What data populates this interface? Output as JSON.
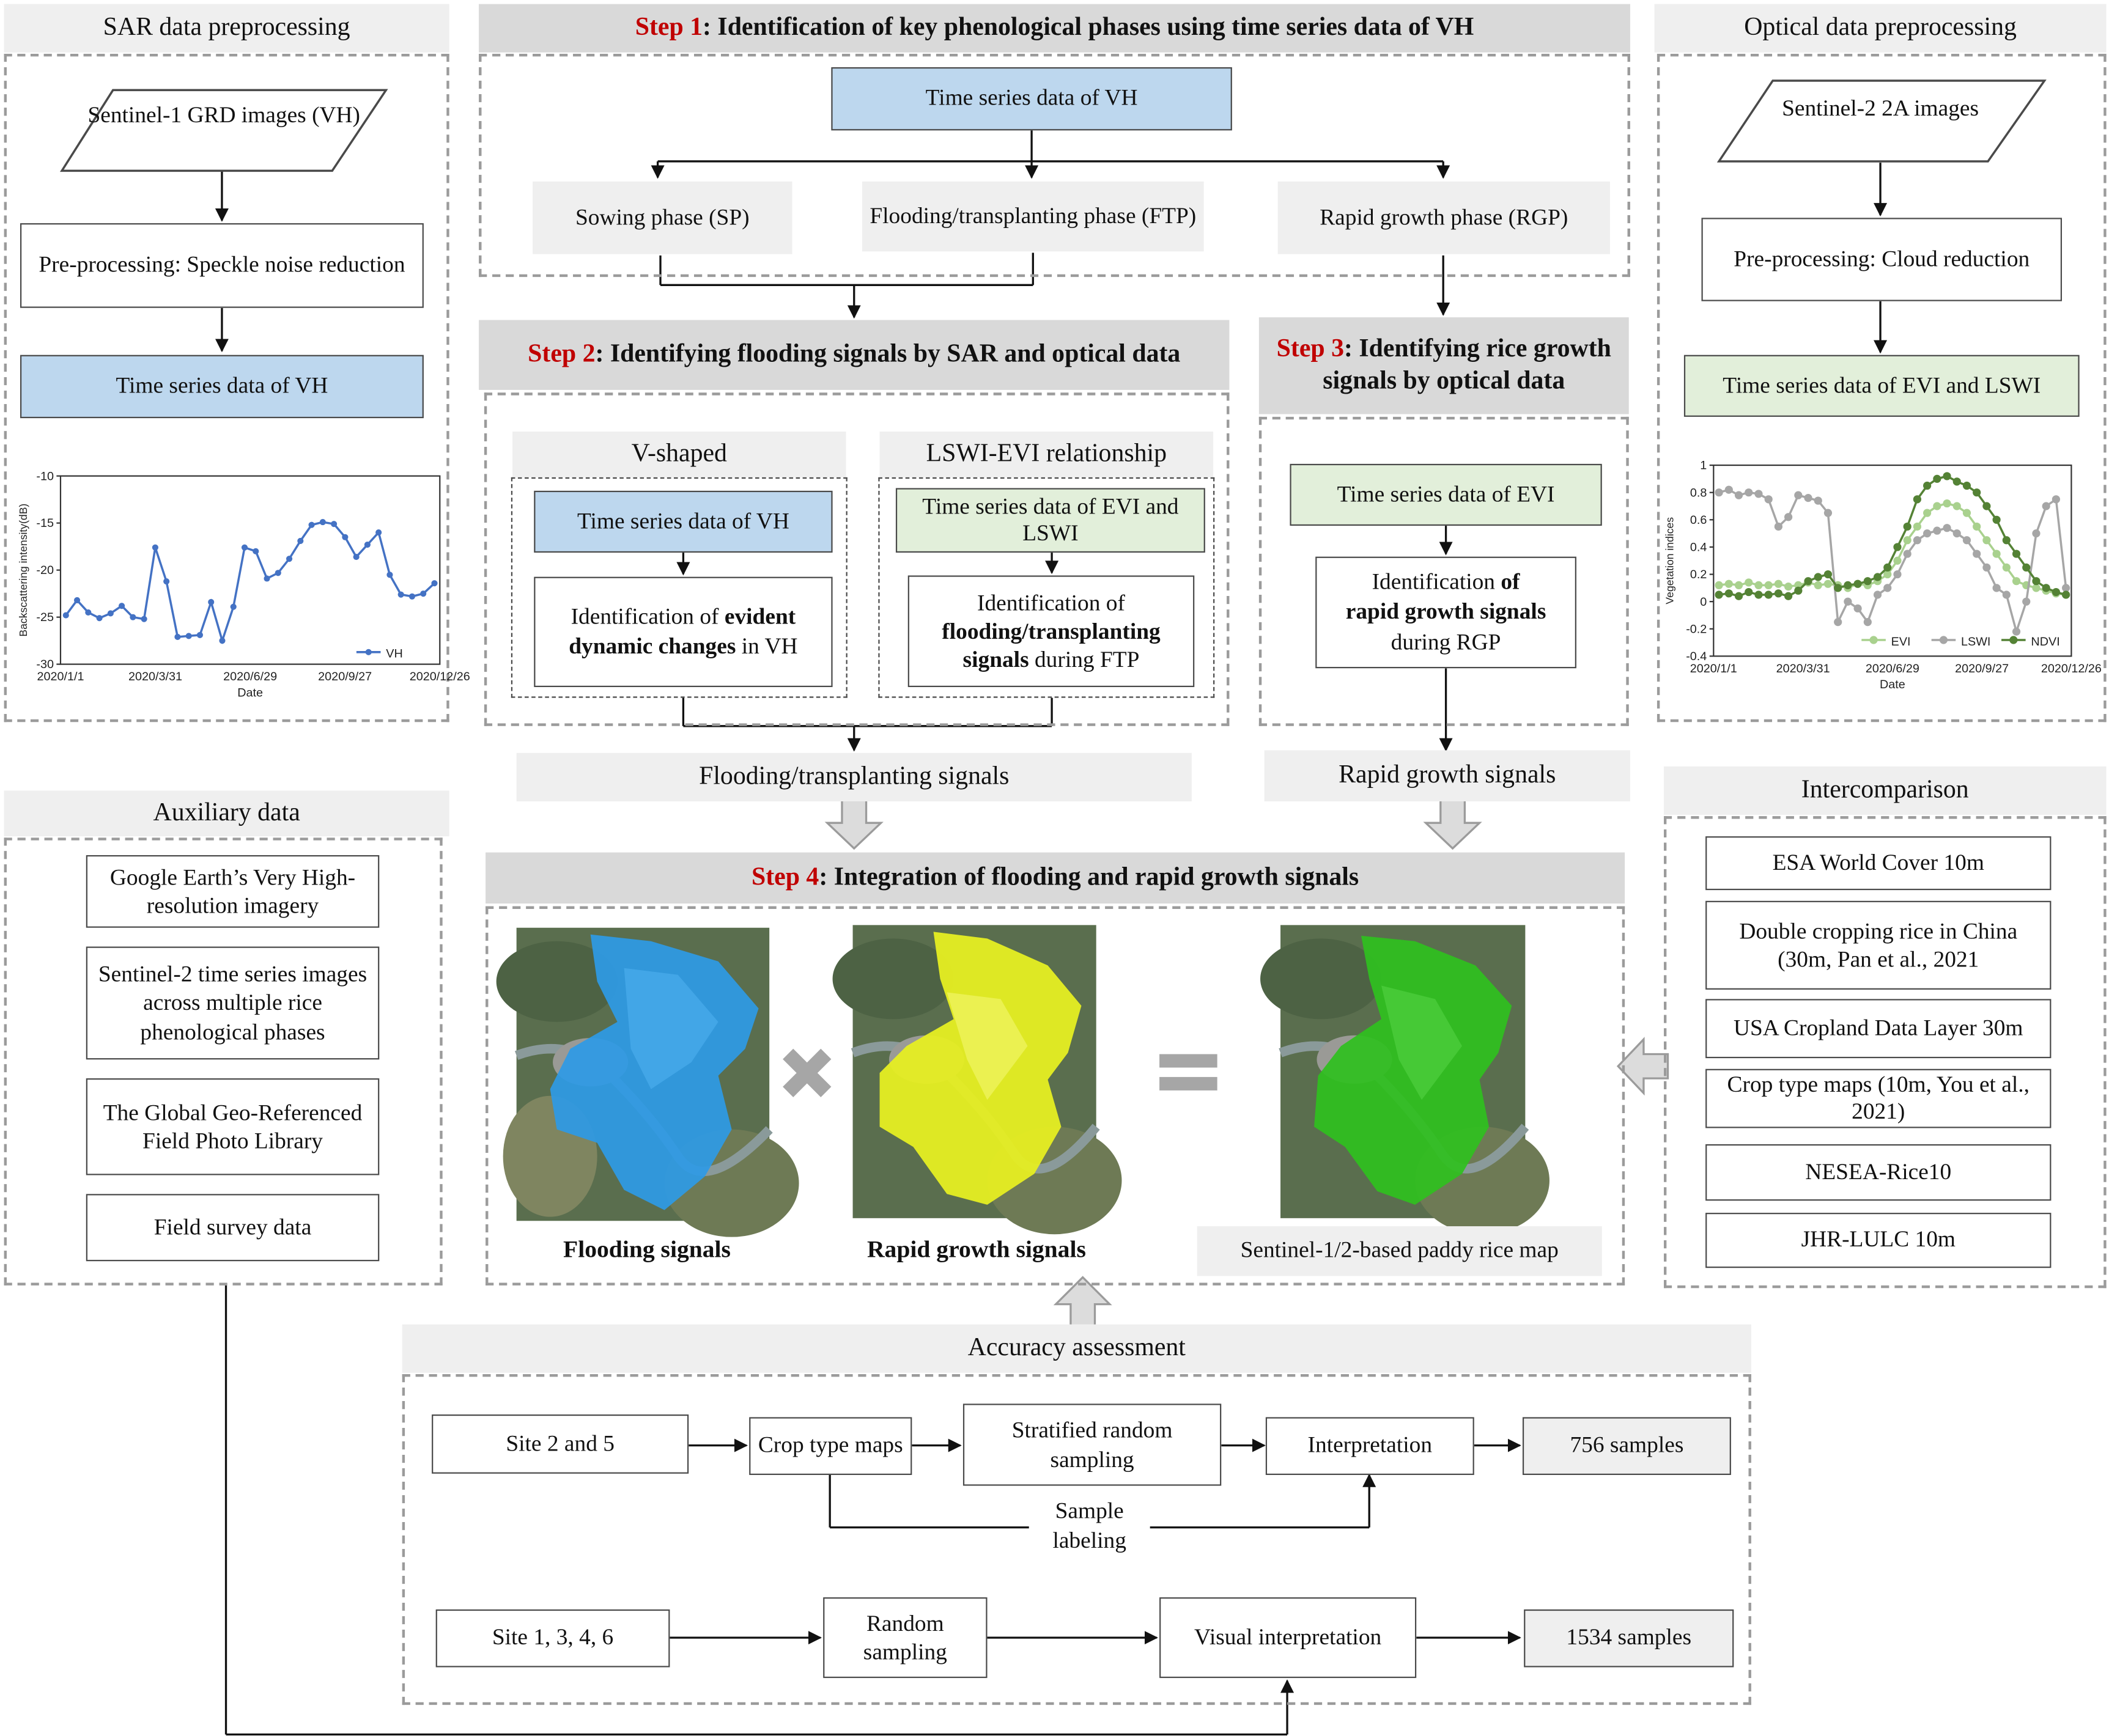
{
  "sar": {
    "title": "SAR data preprocessing",
    "input": "Sentinel-1 GRD images (VH)",
    "preprocess": "Pre-processing: Speckle noise reduction",
    "output": "Time series data of VH",
    "chart_ylabel": "Backscattering intensity(dB)",
    "chart_xlabel": "Date",
    "legend": "VH"
  },
  "optical": {
    "title": "Optical data preprocessing",
    "input": "Sentinel-2 2A images",
    "preprocess": "Pre-processing: Cloud reduction",
    "output": "Time series data of EVI and LSWI",
    "chart_ylabel": "Vegetation indices",
    "chart_xlabel": "Date",
    "legend": [
      "EVI",
      "LSWI",
      "NDVI"
    ]
  },
  "step1": {
    "num": "Step 1",
    "title": ": Identification of key phenological phases using time series data of VH",
    "source": "Time series data of VH",
    "phases": [
      "Sowing phase (SP)",
      "Flooding/transplanting phase (FTP)",
      "Rapid growth phase (RGP)"
    ]
  },
  "step2": {
    "num": "Step 2",
    "title": ": Identifying flooding signals by SAR and optical data",
    "left_header": "V-shaped",
    "left_data": "Time series data of VH",
    "left_ident_pre": "Identification of ",
    "left_ident_bold": "evident dynamic changes",
    "left_ident_post": " in VH",
    "right_header": "LSWI-EVI relationship",
    "right_data": "Time series data of EVI and LSWI",
    "right_ident_pre": "Identification of ",
    "right_ident_bold": "flooding/transplanting signals",
    "right_ident_post": " during FTP",
    "output": "Flooding/transplanting signals"
  },
  "step3": {
    "num": "Step 3",
    "title": ": Identifying rice growth signals by optical data",
    "data": "Time series data of EVI",
    "ident_pre": "Identification ",
    "ident_bold1": "of",
    "ident_bold2": "rapid growth signals",
    "ident_post": "during RGP",
    "output": "Rapid growth signals"
  },
  "step4": {
    "num": "Step 4",
    "title": ": Integration of flooding and rapid growth signals",
    "map1": "Flooding signals",
    "map2": "Rapid growth signals",
    "map3": "Sentinel-1/2-based paddy rice map"
  },
  "auxiliary": {
    "title": "Auxiliary data",
    "items": [
      "Google Earth’s Very High-resolution imagery",
      "Sentinel-2 time series images across multiple rice phenological phases",
      "The Global Geo-Referenced Field Photo Library",
      "Field survey data"
    ]
  },
  "intercomparison": {
    "title": "Intercomparison",
    "items": [
      "ESA World Cover 10m",
      "Double cropping rice in China (30m, Pan et al., 2021",
      "USA Cropland Data Layer 30m",
      "Crop type maps (10m, You et al., 2021)",
      "NESEA-Rice10",
      "JHR-LULC 10m"
    ]
  },
  "accuracy": {
    "title": "Accuracy assessment",
    "row1": [
      "Site 2 and 5",
      "Crop type maps",
      "Stratified random sampling",
      "Interpretation",
      "756 samples"
    ],
    "sample_labeling": "Sample labeling",
    "row2": [
      "Site 1, 3, 4, 6",
      "Random sampling",
      "Visual interpretation",
      "1534 samples"
    ]
  },
  "chart_data": [
    {
      "type": "line",
      "series": [
        {
          "name": "VH",
          "values": [
            -24.8,
            -23.2,
            -24.5,
            -25.1,
            -24.6,
            -23.8,
            -25.0,
            -25.2,
            -17.6,
            -21.2,
            -27.1,
            -27.0,
            -26.9,
            -23.4,
            -27.5,
            -23.9,
            -17.6,
            -18.0,
            -20.9,
            -20.3,
            -18.8,
            -16.9,
            -15.2,
            -14.9,
            -15.1,
            -16.5,
            -18.6,
            -17.3,
            -16.0,
            -20.5,
            -22.6,
            -22.8,
            -22.5,
            -21.4
          ]
        }
      ],
      "x_ticks": [
        "2020/1/1",
        "2020/3/31",
        "2020/6/29",
        "2020/9/27",
        "2020/12/26"
      ],
      "xlabel": "Date",
      "ylabel": "Backscattering intensity(dB)",
      "ylim": [
        -30,
        -10
      ],
      "y_ticks": [
        -10,
        -15,
        -20,
        -25,
        -30
      ],
      "grid": false,
      "legend": "bottom-right"
    },
    {
      "type": "line",
      "series": [
        {
          "name": "EVI",
          "values": [
            0.12,
            0.13,
            0.12,
            0.14,
            0.12,
            0.12,
            0.13,
            0.11,
            0.12,
            0.14,
            0.12,
            0.13,
            0.12,
            0.1,
            0.13,
            0.12,
            0.15,
            0.2,
            0.3,
            0.45,
            0.55,
            0.65,
            0.7,
            0.72,
            0.7,
            0.65,
            0.55,
            0.45,
            0.35,
            0.25,
            0.15,
            0.12,
            0.1,
            0.08,
            0.06,
            0.05
          ]
        },
        {
          "name": "LSWI",
          "values": [
            0.8,
            0.82,
            0.78,
            0.8,
            0.79,
            0.75,
            0.55,
            0.62,
            0.78,
            0.76,
            0.74,
            0.65,
            -0.15,
            0.0,
            -0.05,
            -0.15,
            0.05,
            0.1,
            0.2,
            0.35,
            0.45,
            0.5,
            0.52,
            0.54,
            0.5,
            0.45,
            0.35,
            0.25,
            0.1,
            0.05,
            -0.22,
            0.0,
            0.5,
            0.7,
            0.75,
            0.1
          ]
        },
        {
          "name": "NDVI",
          "values": [
            0.05,
            0.06,
            0.04,
            0.07,
            0.05,
            0.05,
            0.06,
            0.04,
            0.08,
            0.15,
            0.18,
            0.2,
            0.1,
            0.12,
            0.13,
            0.15,
            0.18,
            0.25,
            0.4,
            0.55,
            0.75,
            0.85,
            0.9,
            0.92,
            0.88,
            0.85,
            0.8,
            0.7,
            0.6,
            0.45,
            0.35,
            0.25,
            0.15,
            0.1,
            0.07,
            0.05
          ]
        }
      ],
      "x_ticks": [
        "2020/1/1",
        "2020/3/31",
        "2020/6/29",
        "2020/9/27",
        "2020/12/26"
      ],
      "xlabel": "Date",
      "ylabel": "Vegetation indices",
      "ylim": [
        -0.4,
        1
      ],
      "y_ticks": [
        1,
        0.8,
        0.6,
        0.4,
        0.2,
        0,
        -0.2,
        -0.4
      ],
      "grid": false,
      "legend": "bottom"
    }
  ],
  "colors": {
    "red": "#c00000",
    "blue_fill": "#bdd7ee",
    "green_fill": "#e2efda",
    "vh_line": "#4472c4",
    "evi": "#a9d18e",
    "lswi": "#a6a6a6",
    "ndvi": "#548235",
    "flood_map": "#2e9ae6",
    "growth_map": "#e6ee22",
    "rice_map": "#2fbf1f"
  }
}
